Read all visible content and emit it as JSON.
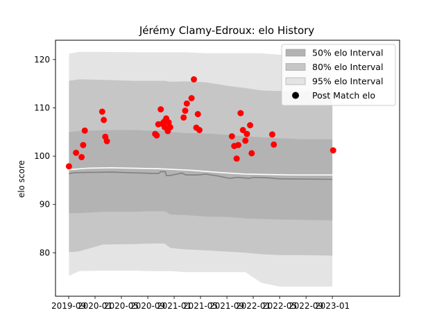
{
  "chart_data": {
    "type": "scatter",
    "title": "Jérémy Clamy-Edroux: elo History",
    "xlabel": "",
    "ylabel": "elo score",
    "xlim": [
      2019.5,
      2023.85
    ],
    "ylim": [
      71,
      124
    ],
    "x_ticks": [
      {
        "value": 2019.667,
        "label": "2019-09"
      },
      {
        "value": 2020.0,
        "label": "2020-01"
      },
      {
        "value": 2020.333,
        "label": "2020-05"
      },
      {
        "value": 2020.667,
        "label": "2020-09"
      },
      {
        "value": 2021.0,
        "label": "2021-01"
      },
      {
        "value": 2021.333,
        "label": "2021-05"
      },
      {
        "value": 2021.667,
        "label": "2021-09"
      },
      {
        "value": 2022.0,
        "label": "2022-01"
      },
      {
        "value": 2022.333,
        "label": "2022-05"
      },
      {
        "value": 2022.667,
        "label": "2022-09"
      },
      {
        "value": 2023.0,
        "label": "2023-01"
      }
    ],
    "y_ticks": [
      80,
      90,
      100,
      110,
      120
    ],
    "legend": {
      "placement": "top-right",
      "entries": [
        {
          "label": "50% elo Interval",
          "color": "#b3b3b3",
          "kind": "patch"
        },
        {
          "label": "80% elo Interval",
          "color": "#c6c6c6",
          "kind": "patch"
        },
        {
          "label": "95% elo Interval",
          "color": "#e4e4e4",
          "kind": "patch"
        },
        {
          "label": "Post Match elo",
          "color": "#000000",
          "kind": "marker"
        }
      ]
    },
    "colors": {
      "band95": "#e4e4e4",
      "band80": "#c6c6c6",
      "band50": "#b3b3b3",
      "median_line": "#808080",
      "mean_line": "#ffffff",
      "points": "#ff0000",
      "frame": "#000000"
    },
    "bands": {
      "x": [
        2019.67,
        2019.8,
        2020.1,
        2020.5,
        2020.67,
        2020.88,
        2020.95,
        2021.15,
        2021.4,
        2021.7,
        2021.9,
        2022.1,
        2022.33,
        2022.67,
        2023.0
      ],
      "p95_upper": [
        121.2,
        121.6,
        121.6,
        121.5,
        121.5,
        121.5,
        121.5,
        121.5,
        121.3,
        121.3,
        121.3,
        121.3,
        121.0,
        121.0,
        121.0
      ],
      "p95_lower": [
        75.2,
        76.2,
        76.3,
        76.3,
        76.2,
        76.2,
        76.2,
        76.0,
        76.0,
        76.0,
        76.0,
        73.8,
        73.0,
        73.0,
        73.0
      ],
      "p80_upper": [
        115.6,
        115.9,
        115.8,
        115.6,
        115.6,
        115.6,
        115.4,
        115.5,
        115.3,
        114.5,
        114.1,
        113.6,
        113.5,
        113.4,
        113.3
      ],
      "p80_lower": [
        80.1,
        80.3,
        81.7,
        81.8,
        81.9,
        81.9,
        81.0,
        80.7,
        80.5,
        80.2,
        80.0,
        79.7,
        79.5,
        79.5,
        79.4
      ],
      "p50_upper": [
        105.0,
        105.2,
        105.4,
        105.4,
        105.3,
        105.3,
        105.0,
        104.8,
        104.7,
        104.4,
        104.1,
        103.9,
        103.7,
        103.5,
        103.5
      ],
      "p50_lower": [
        88.2,
        88.2,
        88.5,
        88.5,
        88.6,
        88.6,
        87.9,
        87.8,
        87.5,
        87.4,
        87.1,
        87.0,
        86.9,
        86.8,
        86.7
      ]
    },
    "median_line": {
      "x": [
        2019.67,
        2019.75,
        2020.2,
        2020.8,
        2020.83,
        2020.89,
        2020.9,
        2020.95,
        2021.1,
        2021.15,
        2021.3,
        2021.4,
        2021.55,
        2021.7,
        2021.8,
        2021.95,
        2022.0,
        2022.2,
        2022.33,
        2023.0
      ],
      "y": [
        96.4,
        96.6,
        96.7,
        96.4,
        96.8,
        96.8,
        96.0,
        96.0,
        96.5,
        96.1,
        96.1,
        96.3,
        95.9,
        95.4,
        95.6,
        95.4,
        95.6,
        95.5,
        95.3,
        95.2
      ]
    },
    "mean_line": {
      "x": [
        2019.67,
        2019.9,
        2020.2,
        2020.8,
        2021.2,
        2021.6,
        2021.9,
        2022.2,
        2022.5,
        2023.0
      ],
      "y": [
        97.2,
        97.5,
        97.6,
        97.4,
        97.1,
        96.6,
        96.3,
        96.2,
        96.1,
        96.1
      ]
    },
    "points": {
      "x": [
        2019.67,
        2019.76,
        2019.83,
        2019.85,
        2019.87,
        2020.09,
        2020.11,
        2020.13,
        2020.15,
        2020.76,
        2020.78,
        2020.8,
        2020.83,
        2020.85,
        2020.87,
        2020.88,
        2020.9,
        2020.92,
        2020.93,
        2020.95,
        2021.12,
        2021.14,
        2021.16,
        2021.22,
        2021.25,
        2021.28,
        2021.3,
        2021.32,
        2021.73,
        2021.76,
        2021.79,
        2021.81,
        2021.84,
        2021.87,
        2021.9,
        2021.92,
        2021.96,
        2021.98,
        2022.24,
        2022.26,
        2023.01
      ],
      "y": [
        97.9,
        100.7,
        99.8,
        102.3,
        105.3,
        109.2,
        107.5,
        104.0,
        103.1,
        104.6,
        104.3,
        106.6,
        109.7,
        106.7,
        107.1,
        106.0,
        107.8,
        105.2,
        107.0,
        106.0,
        108.0,
        109.4,
        110.9,
        112.0,
        115.9,
        105.9,
        108.7,
        105.4,
        104.1,
        102.1,
        99.5,
        102.3,
        108.9,
        105.4,
        103.2,
        104.6,
        106.4,
        100.6,
        104.5,
        102.4,
        101.2
      ]
    }
  }
}
